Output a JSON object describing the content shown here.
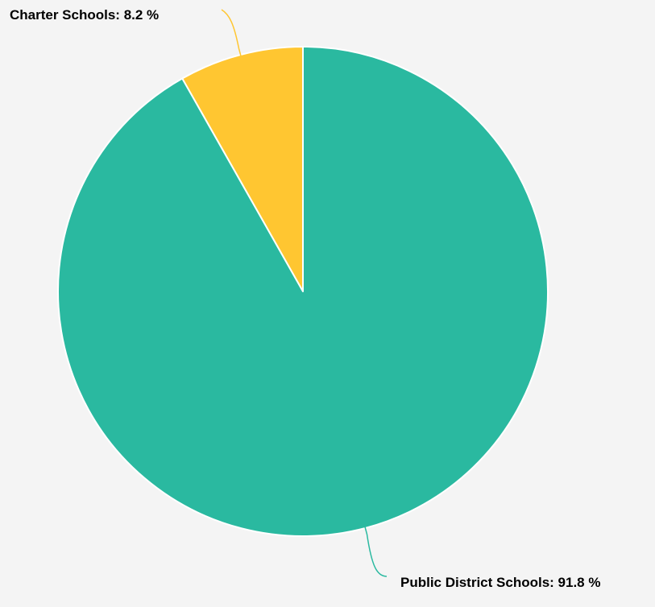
{
  "chart_data": {
    "type": "pie",
    "slices": [
      {
        "label": "Charter Schools",
        "value": 8.2,
        "display": "Charter Schools: 8.2 %",
        "color": "#ffc631"
      },
      {
        "label": "Public District Schools",
        "value": 91.8,
        "display": "Public District Schools: 91.8 %",
        "color": "#2ab9a0"
      }
    ],
    "start_angle_deg": 0,
    "direction": "counter-clockwise from top",
    "background": "#f4f4f4",
    "legend": "none"
  }
}
